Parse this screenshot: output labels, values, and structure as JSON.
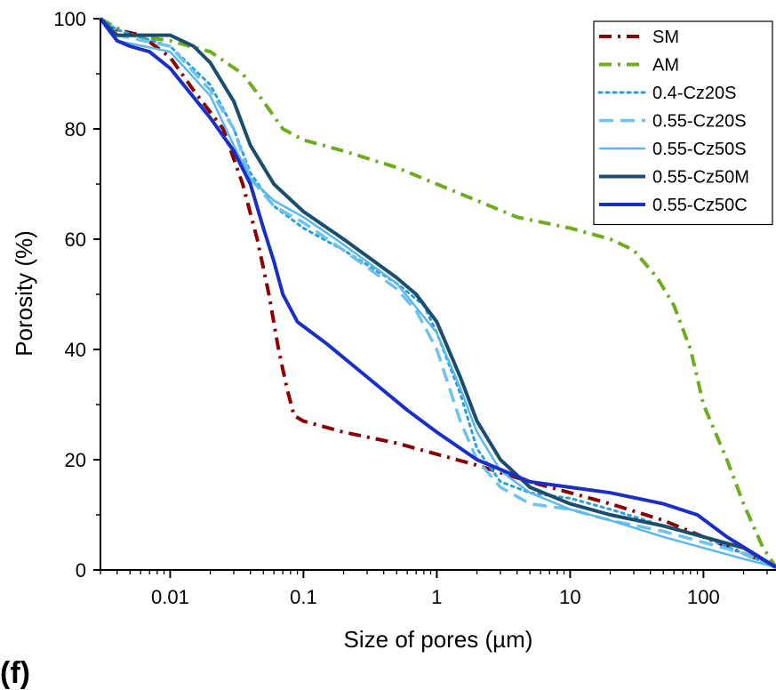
{
  "panel_label": "(f)",
  "chart_data": {
    "type": "line",
    "xlabel": "Size of pores (µm)",
    "ylabel": "Porosity (%)",
    "xscale": "log",
    "xlim": [
      0.003,
      350
    ],
    "ylim": [
      0,
      100
    ],
    "x_ticks": [
      0.01,
      0.1,
      1,
      10,
      100
    ],
    "x_tick_labels": [
      "0.01",
      "0.1",
      "1",
      "10",
      "100"
    ],
    "y_ticks": [
      0,
      20,
      40,
      60,
      80,
      100
    ],
    "y_tick_labels": [
      "0",
      "20",
      "40",
      "60",
      "80",
      "100"
    ],
    "legend_position": "top-right",
    "series": [
      {
        "name": "SM",
        "color": "#8b0000",
        "style": "dashdot",
        "width": 4,
        "x": [
          0.003,
          0.004,
          0.006,
          0.01,
          0.015,
          0.025,
          0.035,
          0.045,
          0.055,
          0.065,
          0.075,
          0.085,
          0.1,
          0.2,
          0.5,
          1,
          2,
          5,
          10,
          20,
          50,
          100,
          200,
          350
        ],
        "y": [
          100,
          98,
          97,
          93,
          87,
          80,
          70,
          60,
          50,
          40,
          33,
          28,
          27,
          25,
          23,
          21,
          19,
          16,
          14,
          12,
          9,
          6,
          3,
          0.5
        ]
      },
      {
        "name": "AM",
        "color": "#6fac1e",
        "style": "dashdot",
        "width": 4,
        "x": [
          0.003,
          0.005,
          0.01,
          0.02,
          0.035,
          0.05,
          0.07,
          0.1,
          0.2,
          0.5,
          1,
          2,
          4,
          10,
          20,
          30,
          45,
          60,
          80,
          100,
          150,
          200,
          280,
          350
        ],
        "y": [
          100,
          97,
          96,
          94,
          90,
          85,
          80,
          78,
          76,
          73,
          70,
          67,
          64,
          62,
          60,
          58,
          53,
          48,
          40,
          30,
          20,
          12,
          4,
          0.5
        ]
      },
      {
        "name": "0.4-Cz20S",
        "color": "#2a9fe0",
        "style": "dotted",
        "width": 3,
        "x": [
          0.003,
          0.004,
          0.01,
          0.02,
          0.03,
          0.04,
          0.06,
          0.1,
          0.2,
          0.5,
          0.8,
          1,
          1.5,
          2,
          3,
          5,
          10,
          20,
          50,
          100,
          200,
          350
        ],
        "y": [
          100,
          98,
          95,
          88,
          80,
          72,
          66,
          62,
          58,
          52,
          48,
          43,
          32,
          22,
          16,
          14,
          13,
          11,
          8,
          6,
          3,
          0.5
        ]
      },
      {
        "name": "0.55-Cz20S",
        "color": "#6ec2ee",
        "style": "dashed",
        "width": 3.5,
        "x": [
          0.003,
          0.004,
          0.01,
          0.02,
          0.03,
          0.04,
          0.06,
          0.1,
          0.2,
          0.5,
          0.7,
          1,
          1.5,
          2,
          3,
          5,
          10,
          20,
          50,
          100,
          200,
          350
        ],
        "y": [
          100,
          97,
          95,
          87,
          80,
          71,
          66,
          63,
          58,
          51,
          47,
          40,
          27,
          20,
          15,
          12,
          11,
          9,
          7,
          5,
          3,
          0.5
        ]
      },
      {
        "name": "0.55-Cz50S",
        "color": "#5bb8ec",
        "style": "solid",
        "width": 2.5,
        "x": [
          0.003,
          0.004,
          0.01,
          0.02,
          0.03,
          0.04,
          0.06,
          0.1,
          0.2,
          0.5,
          1,
          1.5,
          2,
          3,
          5,
          10,
          20,
          50,
          100,
          200,
          350
        ],
        "y": [
          100,
          96,
          94,
          86,
          77,
          71,
          67,
          64,
          59,
          52,
          43,
          33,
          25,
          18,
          14,
          11,
          9,
          6,
          4,
          2,
          0.5
        ]
      },
      {
        "name": "0.55-Cz50M",
        "color": "#1a4d6e",
        "style": "solid",
        "width": 4,
        "x": [
          0.003,
          0.004,
          0.01,
          0.015,
          0.02,
          0.03,
          0.04,
          0.06,
          0.1,
          0.2,
          0.5,
          0.7,
          1,
          1.5,
          2,
          3,
          5,
          10,
          20,
          50,
          100,
          200,
          350
        ],
        "y": [
          100,
          97,
          97,
          95,
          92,
          85,
          77,
          70,
          65,
          60,
          53,
          50,
          45,
          35,
          27,
          20,
          15,
          12,
          10,
          8,
          6,
          4,
          0.5
        ]
      },
      {
        "name": "0.55-Cz50C",
        "color": "#1a2ec8",
        "style": "solid",
        "width": 4,
        "x": [
          0.003,
          0.004,
          0.005,
          0.007,
          0.01,
          0.02,
          0.03,
          0.04,
          0.05,
          0.06,
          0.07,
          0.09,
          0.15,
          0.3,
          0.6,
          1,
          2,
          5,
          10,
          20,
          50,
          90,
          150,
          350
        ],
        "y": [
          100,
          96,
          95,
          94,
          91,
          82,
          76,
          70,
          62,
          56,
          50,
          45,
          41,
          35,
          29,
          25,
          20,
          16,
          15,
          14,
          12,
          10,
          6,
          0.5
        ]
      }
    ]
  }
}
